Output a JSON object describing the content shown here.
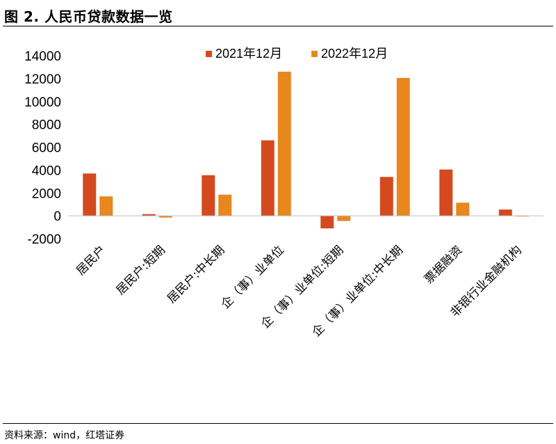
{
  "title": "图 2. 人民币贷款数据一览",
  "source": "资料来源：wind，红塔证券",
  "chart_data": {
    "type": "bar",
    "categories": [
      "居民户",
      "居民户:短期",
      "居民户:中长期",
      "企（事）业单位",
      "企（事）业单位:短期",
      "企（事）业单位:中长期",
      "票据融资",
      "非银行业金融机构"
    ],
    "series": [
      {
        "name": "2021年12月",
        "color": "#d44a1e",
        "values": [
          3700,
          150,
          3550,
          6600,
          -1100,
          3400,
          4050,
          550
        ]
      },
      {
        "name": "2022年12月",
        "color": "#e8871e",
        "values": [
          1700,
          -150,
          1850,
          12600,
          -450,
          12050,
          1150,
          -50
        ]
      }
    ],
    "ylim": [
      -2000,
      14000
    ],
    "yticks": [
      -2000,
      0,
      2000,
      4000,
      6000,
      8000,
      10000,
      12000,
      14000
    ],
    "legend": "top-center",
    "grid": false
  }
}
